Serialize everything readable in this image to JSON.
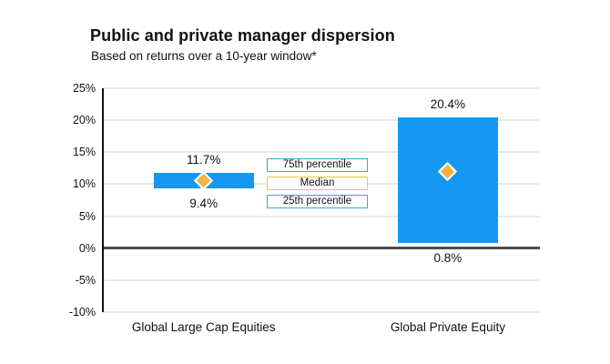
{
  "title": "Public and private manager dispersion",
  "subtitle": "Based on returns over a 10-year window*",
  "colors": {
    "bar": "#1598f2",
    "median_marker": "#f5b440",
    "legend_blue_border": "#35a7e5",
    "legend_gold_border": "#f0c24b",
    "zero_line": "#4a4b4d",
    "gridline": "#e8e8e8",
    "axis": "#111111"
  },
  "legend": {
    "items": [
      {
        "label": "75th percentile",
        "style": "blue"
      },
      {
        "label": "Median",
        "style": "gold"
      },
      {
        "label": "25th percentile",
        "style": "blue"
      }
    ]
  },
  "chart_data": {
    "type": "bar",
    "variant": "floating range bars (25th to 75th percentile) with median diamond markers",
    "title": "Public and private manager dispersion",
    "subtitle": "Based on returns over a 10-year window*",
    "categories": [
      "Global Large Cap Equities",
      "Global Private Equity"
    ],
    "series": [
      {
        "name": "75th percentile",
        "values": [
          11.7,
          20.4
        ]
      },
      {
        "name": "Median",
        "values": [
          10.5,
          12.0
        ],
        "estimated_from_marker_position": true
      },
      {
        "name": "25th percentile",
        "values": [
          9.4,
          0.8
        ]
      }
    ],
    "bar_value_labels": {
      "above": [
        "11.7%",
        "20.4%"
      ],
      "below": [
        "9.4%",
        "0.8%"
      ]
    },
    "ylim": [
      -10,
      25
    ],
    "ytick_values": [
      25,
      20,
      15,
      10,
      5,
      0,
      -5,
      -10
    ],
    "ytick_labels": [
      "25%",
      "20%",
      "15%",
      "10%",
      "5%",
      "0%",
      "-5%",
      "-10%"
    ],
    "grid": true,
    "legend_position": "stacked boxes centered between the two bars"
  }
}
